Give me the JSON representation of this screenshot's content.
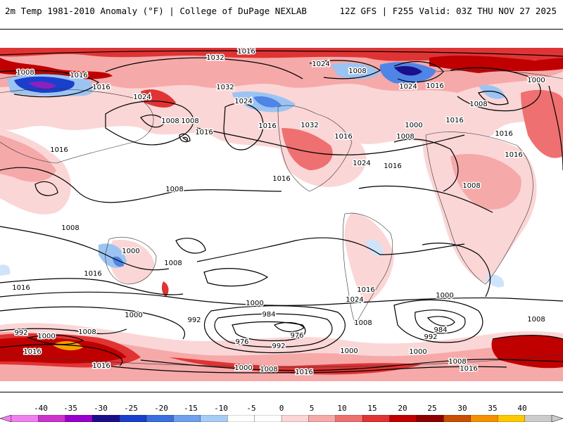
{
  "header": {
    "left": "2m Temp 1981-2010 Anomaly (°F) | College of DuPage NEXLAB",
    "right": "12Z GFS | F255 Valid: 03Z THU NOV 27 2025"
  },
  "colors": {
    "warm_1": "#fbd6d6",
    "warm_2": "#f6a9a9",
    "warm_3": "#ee7070",
    "warm_4": "#e03434",
    "warm_5": "#c00000",
    "warm_6": "#8c0000",
    "warm_extreme": "#f5a000",
    "cold_1": "#cfe4fb",
    "cold_2": "#9cc4f2",
    "cold_3": "#4f85e6",
    "cold_4": "#1a3fcc",
    "cold_5": "#1c0f8a",
    "cold_extreme": "#8e1fc0"
  },
  "colorbar": {
    "ticks": [
      "-40",
      "-35",
      "-30",
      "-25",
      "-20",
      "-15",
      "-10",
      "-5",
      "0",
      "5",
      "10",
      "15",
      "20",
      "25",
      "30",
      "35",
      "40"
    ],
    "segments": [
      "#f080f0",
      "#cc33cc",
      "#9900cc",
      "#1c0f8a",
      "#1a3fcc",
      "#3a6fe0",
      "#6fa0ee",
      "#a8ccf5",
      "#ffffff",
      "#ffffff",
      "#fbd6d6",
      "#f6a9a9",
      "#ee7070",
      "#e03434",
      "#c00000",
      "#8c0000",
      "#c85000",
      "#f59000",
      "#ffc800",
      "#cccccc"
    ]
  },
  "isobars": [
    {
      "label": "1016"
    },
    {
      "label": "1032"
    },
    {
      "label": "1008"
    },
    {
      "label": "1016"
    },
    {
      "label": "1024"
    },
    {
      "label": "1008"
    },
    {
      "label": "1024"
    },
    {
      "label": "1016"
    },
    {
      "label": "1000"
    },
    {
      "label": "1016"
    },
    {
      "label": "1032"
    },
    {
      "label": "1024"
    },
    {
      "label": "1016"
    },
    {
      "label": "1024"
    },
    {
      "label": "1008"
    },
    {
      "label": "1016"
    },
    {
      "label": "1032"
    },
    {
      "label": "1016"
    },
    {
      "label": "1008"
    },
    {
      "label": "1008"
    },
    {
      "label": "1016"
    },
    {
      "label": "1008"
    },
    {
      "label": "1000"
    },
    {
      "label": "1016"
    },
    {
      "label": "1016"
    },
    {
      "label": "1008"
    },
    {
      "label": "1016"
    },
    {
      "label": "1024"
    },
    {
      "label": "1016"
    },
    {
      "label": "1008"
    },
    {
      "label": "1000"
    },
    {
      "label": "1008"
    },
    {
      "label": "1016"
    },
    {
      "label": "1008"
    },
    {
      "label": "1000"
    },
    {
      "label": "984"
    },
    {
      "label": "992"
    },
    {
      "label": "976"
    },
    {
      "label": "976"
    },
    {
      "label": "992"
    },
    {
      "label": "1000"
    },
    {
      "label": "1008"
    },
    {
      "label": "1016"
    },
    {
      "label": "1016"
    },
    {
      "label": "1016"
    },
    {
      "label": "1000"
    },
    {
      "label": "992"
    },
    {
      "label": "1000"
    },
    {
      "label": "1008"
    },
    {
      "label": "1016"
    },
    {
      "label": "1000"
    },
    {
      "label": "1008"
    },
    {
      "label": "1016"
    },
    {
      "label": "1000"
    },
    {
      "label": "984"
    },
    {
      "label": "992"
    },
    {
      "label": "1000"
    },
    {
      "label": "1008"
    },
    {
      "label": "1016"
    },
    {
      "label": "1008"
    },
    {
      "label": "1024"
    },
    {
      "label": "1016"
    }
  ]
}
